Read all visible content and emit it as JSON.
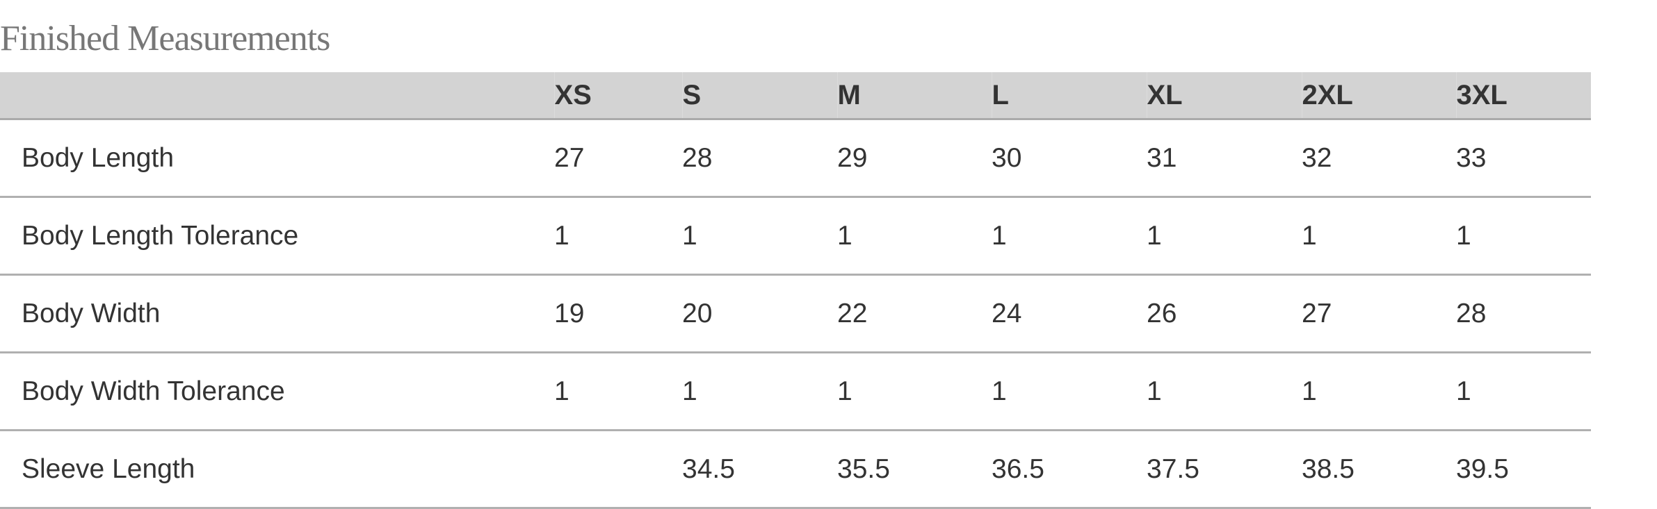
{
  "title": "Finished Measurements",
  "columns": [
    "",
    "XS",
    "S",
    "M",
    "L",
    "XL",
    "2XL",
    "3XL"
  ],
  "rows": [
    {
      "label": "Body Length",
      "values": [
        "27",
        "28",
        "29",
        "30",
        "31",
        "32",
        "33"
      ]
    },
    {
      "label": "Body Length Tolerance",
      "values": [
        "1",
        "1",
        "1",
        "1",
        "1",
        "1",
        "1"
      ]
    },
    {
      "label": "Body Width",
      "values": [
        "19",
        "20",
        "22",
        "24",
        "26",
        "27",
        "28"
      ]
    },
    {
      "label": "Body Width Tolerance",
      "values": [
        "1",
        "1",
        "1",
        "1",
        "1",
        "1",
        "1"
      ]
    },
    {
      "label": "Sleeve Length",
      "values": [
        "",
        "34.5",
        "35.5",
        "36.5",
        "37.5",
        "38.5",
        "39.5"
      ]
    }
  ]
}
